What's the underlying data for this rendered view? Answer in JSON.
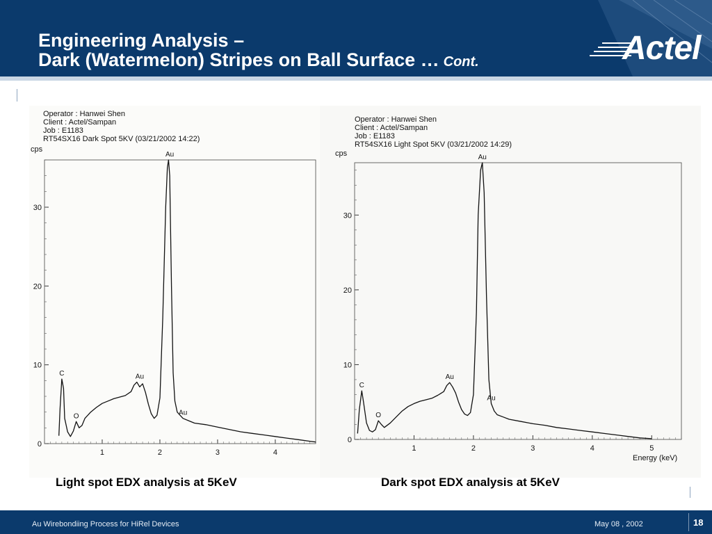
{
  "header": {
    "title_line1": "Engineering Analysis –",
    "title_line2": "Dark (Watermelon) Stripes on Ball Surface …",
    "title_suffix": "Cont.",
    "logo_text": "Actel"
  },
  "captions": {
    "left": "Light spot EDX analysis at 5KeV",
    "right": "Dark spot EDX analysis at 5KeV"
  },
  "footer": {
    "left": "Au Wirebondiing Process for HiRel Devices",
    "date": "May 08 , 2002",
    "page": "18"
  },
  "colors": {
    "header_bg": "#0b3a6c",
    "panel_bg": "#fbfbf9",
    "trace": "#111111"
  },
  "chart_data": [
    {
      "type": "line",
      "meta": {
        "operator": "Operator : Hanwei Shen",
        "client": "Client : Actel/Sampan",
        "job": "Job : E1183",
        "sample": "RT54SX16 Dark Spot 5KV (03/21/2002 14:22)"
      },
      "ylabel": "cps",
      "xlabel": "",
      "xlim": [
        0,
        4.7
      ],
      "ylim": [
        0,
        36
      ],
      "xticks": [
        1,
        2,
        3,
        4
      ],
      "yticks": [
        0,
        10,
        20,
        30
      ],
      "grid": false,
      "series": [
        {
          "x": [
            0.25,
            0.27,
            0.3,
            0.33,
            0.35,
            0.4,
            0.45,
            0.5,
            0.55,
            0.6,
            0.65,
            0.7,
            0.8,
            0.9,
            1.0,
            1.1,
            1.2,
            1.3,
            1.4,
            1.5,
            1.55,
            1.6,
            1.65,
            1.7,
            1.75,
            1.8,
            1.85,
            1.9,
            1.95,
            2.0,
            2.05,
            2.1,
            2.13,
            2.15,
            2.17,
            2.2,
            2.23,
            2.26,
            2.3,
            2.35,
            2.4,
            2.5,
            2.6,
            2.8,
            3.0,
            3.2,
            3.4,
            3.6,
            3.8,
            4.0,
            4.2,
            4.4,
            4.6,
            4.7
          ],
          "y": [
            1.0,
            4.5,
            8.2,
            7.0,
            3.2,
            1.5,
            0.9,
            1.6,
            2.8,
            2.0,
            2.3,
            3.2,
            4.0,
            4.6,
            5.1,
            5.4,
            5.7,
            5.9,
            6.1,
            6.6,
            7.4,
            7.8,
            7.2,
            7.6,
            6.5,
            5.0,
            3.8,
            3.2,
            3.6,
            5.8,
            16.0,
            30.0,
            35.0,
            36.0,
            34.0,
            20.0,
            9.0,
            5.4,
            4.0,
            3.6,
            3.2,
            2.9,
            2.6,
            2.4,
            2.1,
            1.8,
            1.5,
            1.3,
            1.1,
            0.9,
            0.7,
            0.5,
            0.3,
            0.2
          ]
        }
      ],
      "annotations": [
        {
          "label": "Au",
          "x": 2.17,
          "y": 36.0
        },
        {
          "label": "C",
          "x": 0.3,
          "y": 8.2
        },
        {
          "label": "O",
          "x": 0.55,
          "y": 2.8
        },
        {
          "label": "Au",
          "x": 1.65,
          "y": 7.8
        },
        {
          "label": "Au",
          "x": 2.4,
          "y": 3.2
        }
      ]
    },
    {
      "type": "line",
      "meta": {
        "operator": "Operator : Hanwei Shen",
        "client": "Client : Actel/Sampan",
        "job": "Job : E1183",
        "sample": "RT54SX16 Light Spot 5KV (03/21/2002 14:29)"
      },
      "ylabel": "cps",
      "xlabel": "Energy (keV)",
      "xlim": [
        0,
        5.5
      ],
      "ylim": [
        0,
        37
      ],
      "xticks": [
        1,
        2,
        3,
        4,
        5
      ],
      "yticks": [
        0,
        10,
        20,
        30
      ],
      "grid": false,
      "series": [
        {
          "x": [
            0.05,
            0.08,
            0.12,
            0.15,
            0.2,
            0.25,
            0.3,
            0.35,
            0.4,
            0.45,
            0.5,
            0.6,
            0.7,
            0.8,
            0.9,
            1.0,
            1.1,
            1.2,
            1.3,
            1.4,
            1.5,
            1.55,
            1.6,
            1.65,
            1.7,
            1.75,
            1.8,
            1.85,
            1.9,
            1.95,
            2.0,
            2.05,
            2.08,
            2.12,
            2.15,
            2.18,
            2.22,
            2.26,
            2.3,
            2.35,
            2.4,
            2.5,
            2.6,
            2.8,
            3.0,
            3.2,
            3.4,
            3.6,
            3.8,
            4.0,
            4.2,
            4.4,
            4.6,
            4.8,
            5.0
          ],
          "y": [
            0.8,
            4.0,
            6.5,
            5.0,
            2.2,
            1.2,
            1.0,
            1.3,
            2.5,
            2.0,
            1.6,
            2.2,
            3.0,
            3.8,
            4.4,
            4.8,
            5.1,
            5.3,
            5.5,
            5.9,
            6.4,
            7.2,
            7.6,
            7.0,
            6.2,
            5.0,
            4.0,
            3.4,
            3.2,
            3.6,
            6.0,
            17.0,
            30.0,
            36.0,
            37.0,
            33.0,
            19.0,
            8.0,
            4.8,
            3.8,
            3.3,
            3.0,
            2.7,
            2.4,
            2.1,
            1.9,
            1.6,
            1.4,
            1.2,
            1.0,
            0.8,
            0.6,
            0.4,
            0.2,
            0.1
          ]
        }
      ],
      "annotations": [
        {
          "label": "Au",
          "x": 2.15,
          "y": 37.0
        },
        {
          "label": "C",
          "x": 0.12,
          "y": 6.5
        },
        {
          "label": "O",
          "x": 0.4,
          "y": 2.5
        },
        {
          "label": "Au",
          "x": 1.6,
          "y": 7.6
        },
        {
          "label": "Au",
          "x": 2.3,
          "y": 4.8
        }
      ]
    }
  ]
}
